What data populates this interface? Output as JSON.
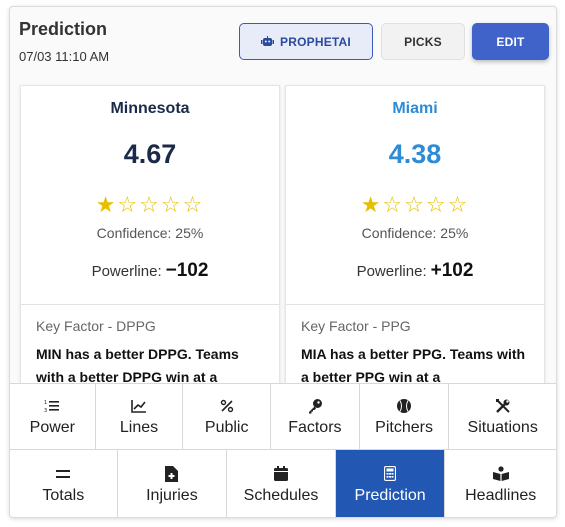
{
  "header": {
    "title": "Prediction",
    "timestamp": "07/03 11:10 AM",
    "buttons": {
      "prophet": "PROPHETAI",
      "picks": "PICKS",
      "edit": "EDIT"
    }
  },
  "teams": [
    {
      "name": "Minnesota",
      "score": "4.67",
      "color": "#1c2a4a",
      "stars": "★☆☆☆☆",
      "stars_filled": 1,
      "stars_total": 5,
      "confidence": "Confidence: 25%",
      "powerline_label": "Powerline:",
      "powerline_value": "−102",
      "key_factor_title": "Key Factor - DPPG",
      "key_factor_text": "MIN has a better DPPG. Teams with a better DPPG win at a"
    },
    {
      "name": "Miami",
      "score": "4.38",
      "color": "#2e8bd6",
      "stars": "★☆☆☆☆",
      "stars_filled": 1,
      "stars_total": 5,
      "confidence": "Confidence: 25%",
      "powerline_label": "Powerline:",
      "powerline_value": "+102",
      "key_factor_title": "Key Factor - PPG",
      "key_factor_text": "MIA has a better PPG. Teams with a better PPG win at a"
    }
  ],
  "nav_row1": [
    {
      "label": "Power",
      "icon": "numbered-list-icon"
    },
    {
      "label": "Lines",
      "icon": "line-chart-icon"
    },
    {
      "label": "Public",
      "icon": "percent-icon"
    },
    {
      "label": "Factors",
      "icon": "key-icon"
    },
    {
      "label": "Pitchers",
      "icon": "baseball-icon"
    },
    {
      "label": "Situations",
      "icon": "tools-icon"
    }
  ],
  "nav_row2": [
    {
      "label": "Totals",
      "icon": "equals-icon"
    },
    {
      "label": "Injuries",
      "icon": "medical-file-icon"
    },
    {
      "label": "Schedules",
      "icon": "calendar-icon"
    },
    {
      "label": "Prediction",
      "icon": "calculator-icon",
      "active": true
    },
    {
      "label": "Headlines",
      "icon": "reader-icon"
    }
  ],
  "colors": {
    "accent": "#3f63c9",
    "active_tab": "#2257b3",
    "star": "#e6c000"
  }
}
